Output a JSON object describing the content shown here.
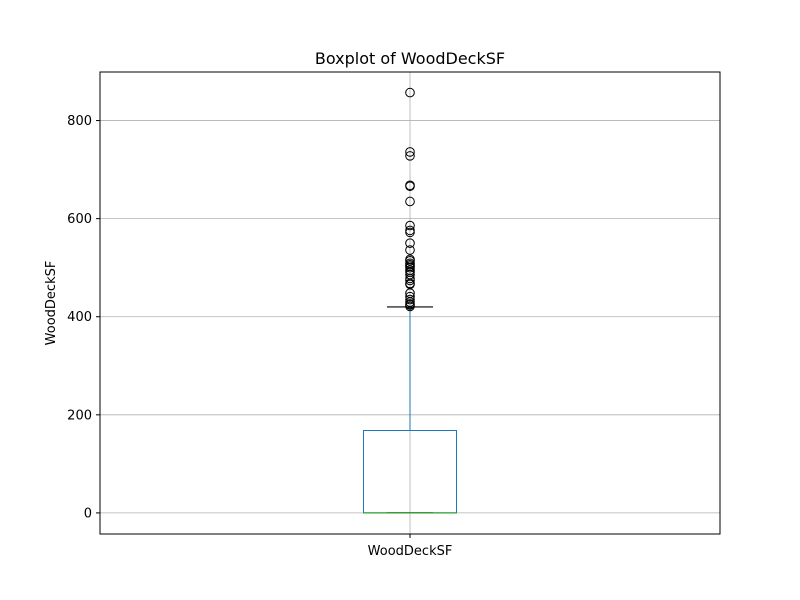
{
  "chart_data": {
    "type": "boxplot",
    "title": "Boxplot of WoodDeckSF",
    "xlabel": "",
    "ylabel": "WoodDeckSF",
    "categories": [
      "WoodDeckSF"
    ],
    "ylim": [
      -43,
      899
    ],
    "yticks": [
      0,
      200,
      400,
      600,
      800
    ],
    "grid": true,
    "box": {
      "min": 0,
      "q1": 0,
      "median": 0,
      "q3": 168,
      "whisker_low": 0,
      "whisker_high": 420
    },
    "outliers": [
      421,
      424,
      426,
      430,
      435,
      441,
      448,
      466,
      468,
      474,
      478,
      486,
      491,
      495,
      500,
      503,
      506,
      509,
      514,
      517,
      536,
      550,
      572,
      576,
      586,
      635,
      666,
      668,
      728,
      736,
      857
    ],
    "colors": {
      "box": "#1f77b4",
      "median": "#2ca02c",
      "whisker": "#1f77b4",
      "cap": "#000000",
      "flier": "#000000",
      "grid": "#b0b0b0"
    }
  }
}
